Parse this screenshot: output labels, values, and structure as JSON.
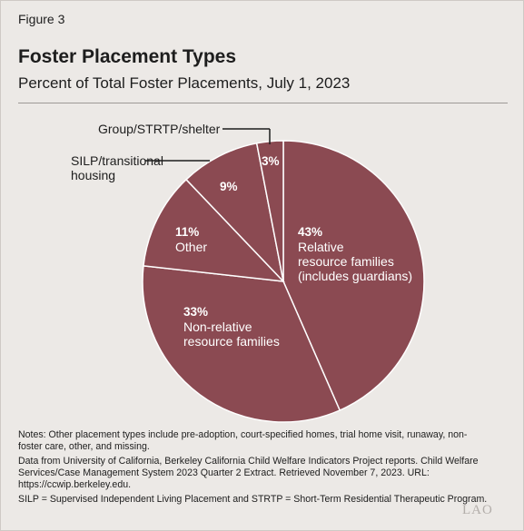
{
  "figure_label": "Figure 3",
  "title": "Foster Placement Types",
  "subtitle": "Percent of Total Foster Placements, July 1, 2023",
  "chart_data": {
    "type": "pie",
    "title": "Foster Placement Types",
    "subtitle": "Percent of Total Foster Placements, July 1, 2023",
    "slices": [
      {
        "label": "Relative resource families (includes guardians)",
        "value": 43,
        "value_label": "43%",
        "label_lines": [
          "Relative",
          "resource families",
          "(includes guardians)"
        ]
      },
      {
        "label": "Non-relative resource families",
        "value": 33,
        "value_label": "33%",
        "label_lines": [
          "Non-relative",
          "resource families"
        ]
      },
      {
        "label": "Other",
        "value": 11,
        "value_label": "11%",
        "label_lines": [
          "Other"
        ]
      },
      {
        "label": "SILP/transitional housing",
        "value": 9,
        "value_label": "9%",
        "label_lines": []
      },
      {
        "label": "Group/STRTP/shelter",
        "value": 3,
        "value_label": "3%",
        "label_lines": []
      }
    ],
    "callouts": {
      "silp_lines": [
        "SILP/transitional",
        "housing"
      ],
      "group": "Group/STRTP/shelter"
    },
    "colors": {
      "slice": "#8b4a52",
      "border": "#ffffff",
      "text": "#ffffff",
      "leader": "#1d1d1d"
    }
  },
  "notes": {
    "note1": "Notes: Other placement types include pre-adoption, court-specified homes, trial home visit, runaway, non-foster care, other, and missing.",
    "note2": "Data from University of California, Berkeley California Child Welfare Indicators Project reports. Child Welfare Services/Case Management System 2023 Quarter 2 Extract. Retrieved November 7, 2023. URL: https://ccwip.berkeley.edu.",
    "note3": "SILP = Supervised Independent Living Placement and STRTP = Short-Term Residential Therapeutic Program."
  },
  "logo_text": "LAO"
}
